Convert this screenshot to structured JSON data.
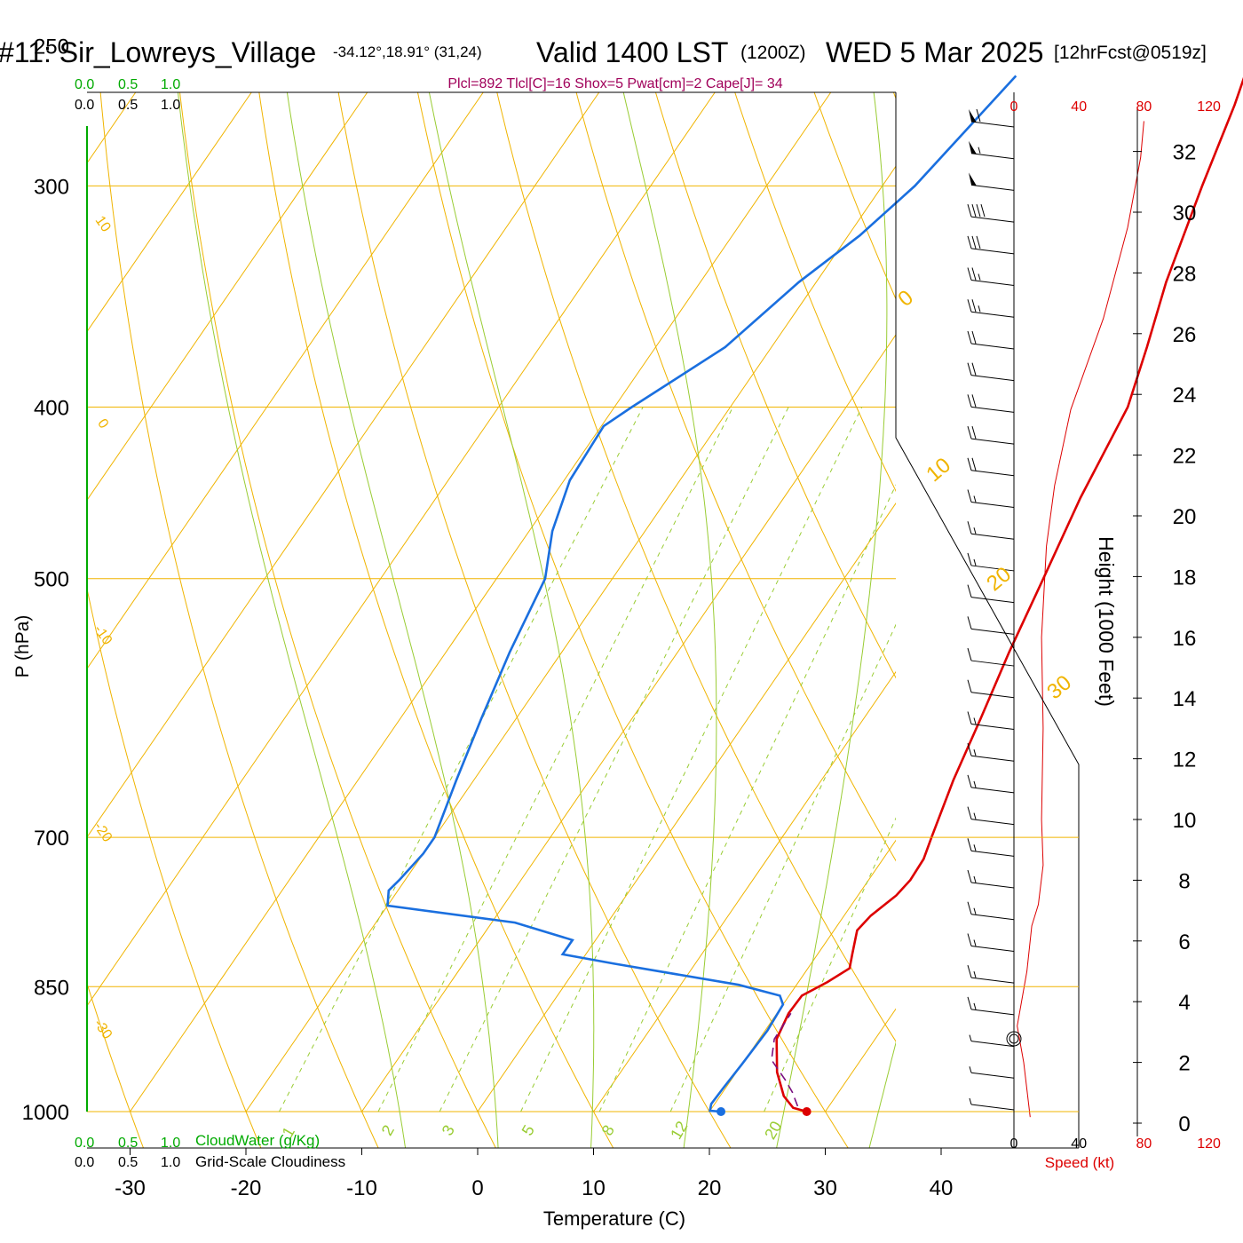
{
  "header": {
    "station": "#11: Sir_Lowreys_Village",
    "coords": "-34.12°,18.91° (31,24)",
    "valid_main": "Valid 1400 LST",
    "valid_z": "(1200Z)",
    "date": "WED 5 Mar 2025",
    "forecast": "[12hrFcst@0519z]",
    "indices": "Plcl=892 Tlcl[C]=16 Shox=5 Pwat[cm]=2 Cape[J]= 34"
  },
  "colors": {
    "isotherm": "#f0b400",
    "mixing": "#99cc33",
    "temperature": "#dd0000",
    "dewpoint": "#1a6fdf",
    "parcel": "#7a1080",
    "cloud_green": "#00aa00",
    "indices": "#a0005a",
    "speed": "#dd0000"
  },
  "chart_data": {
    "type": "line",
    "title": "",
    "xlabel": "Temperature (C)",
    "ylabel": "P (hPa)",
    "xlim": [
      -34,
      36
    ],
    "x_ticks": [
      -30,
      -20,
      -10,
      0,
      10,
      20,
      30,
      40
    ],
    "pressure_ticks": [
      250,
      300,
      400,
      500,
      700,
      850,
      1000
    ],
    "skew_isotherm_labels": [
      "10",
      "0",
      "-10",
      "-20",
      "-30"
    ],
    "dry_adiabat_labels": [
      "0",
      "10",
      "20",
      "30"
    ],
    "mixing_ratio_labels": [
      "1",
      "2",
      "3",
      "5",
      "8",
      "12",
      "20"
    ],
    "series": [
      {
        "name": "",
        "kind": "temperature",
        "points": [
          [
            28.4,
            1000
          ],
          [
            27,
            995
          ],
          [
            25.5,
            980
          ],
          [
            23.5,
            950
          ],
          [
            21.5,
            910
          ],
          [
            21,
            880
          ],
          [
            21.1,
            860
          ],
          [
            22.5,
            845
          ],
          [
            23.6,
            830
          ],
          [
            23,
            815
          ],
          [
            22,
            790
          ],
          [
            22.3,
            775
          ],
          [
            23.3,
            755
          ],
          [
            23.6,
            740
          ],
          [
            23.5,
            720
          ],
          [
            22.9,
            700
          ],
          [
            21.4,
            650
          ],
          [
            20.1,
            600
          ],
          [
            18.6,
            550
          ],
          [
            17.2,
            500
          ],
          [
            15.6,
            450
          ],
          [
            14.3,
            400
          ],
          [
            12.4,
            370
          ],
          [
            10.2,
            340
          ],
          [
            7.6,
            300
          ],
          [
            5.6,
            270
          ],
          [
            3.2,
            243
          ]
        ]
      },
      {
        "name": "",
        "kind": "dewpoint",
        "points": [
          [
            21,
            1000
          ],
          [
            20,
            999
          ],
          [
            19.7,
            990
          ],
          [
            19.8,
            970
          ],
          [
            20,
            940
          ],
          [
            20.2,
            900
          ],
          [
            20,
            870
          ],
          [
            19.2,
            860
          ],
          [
            15,
            848
          ],
          [
            3,
            825
          ],
          [
            -2,
            815
          ],
          [
            -2,
            800
          ],
          [
            -8,
            782
          ],
          [
            -20,
            765
          ],
          [
            -20.8,
            750
          ],
          [
            -20.5,
            740
          ],
          [
            -20,
            715
          ],
          [
            -20,
            700
          ],
          [
            -21.5,
            650
          ],
          [
            -23,
            600
          ],
          [
            -24.5,
            550
          ],
          [
            -25.8,
            500
          ],
          [
            -28,
            470
          ],
          [
            -29.5,
            440
          ],
          [
            -29.8,
            410
          ],
          [
            -28.5,
            400
          ],
          [
            -24,
            370
          ],
          [
            -21.5,
            340
          ],
          [
            -19,
            320
          ],
          [
            -17.2,
            300
          ],
          [
            -15,
            260
          ]
        ]
      },
      {
        "name": "",
        "kind": "parcel",
        "points": [
          [
            27.3,
            993
          ],
          [
            26,
            975
          ],
          [
            24.7,
            960
          ],
          [
            22.3,
            935
          ],
          [
            21.3,
            910
          ],
          [
            21.2,
            880
          ]
        ]
      }
    ],
    "wind_barbs_kt": [
      5,
      5,
      5,
      15,
      15,
      15,
      15,
      15,
      15,
      15,
      15,
      15,
      15,
      10,
      10,
      10,
      10,
      15,
      15,
      15,
      20,
      20,
      20,
      20,
      20,
      25,
      25,
      30,
      40,
      50,
      55,
      60
    ],
    "speed_axis": {
      "label": "Speed (kt)",
      "ticks": [
        0,
        40,
        80,
        120
      ]
    },
    "speed_profile": {
      "name": "",
      "points": [
        [
          10,
          0.2
        ],
        [
          6,
          2
        ],
        [
          2,
          3.2
        ],
        [
          8,
          5
        ],
        [
          11,
          6.5
        ],
        [
          15,
          7.2
        ],
        [
          18,
          8.5
        ],
        [
          17,
          10
        ],
        [
          18,
          13
        ],
        [
          17,
          16
        ],
        [
          20,
          19
        ],
        [
          25,
          21
        ],
        [
          35,
          23.5
        ],
        [
          55,
          26.5
        ],
        [
          70,
          29.5
        ],
        [
          78,
          31.8
        ],
        [
          80,
          33
        ]
      ]
    },
    "height_axis": {
      "label": "Height (1000 Feet)",
      "ticks": [
        0,
        2,
        4,
        6,
        8,
        10,
        12,
        14,
        16,
        18,
        20,
        22,
        24,
        26,
        28,
        30,
        32
      ]
    },
    "cloud_axes": {
      "top_green_ticks": [
        "0.0",
        "0.5",
        "1.0"
      ],
      "top_black_ticks": [
        "0.0",
        "0.5",
        "1.0"
      ],
      "bottom_green_ticks": [
        "0.0",
        "0.5",
        "1.0"
      ],
      "bottom_green_label": "CloudWater (g/Kg)",
      "bottom_black_ticks": [
        "0.0",
        "0.5",
        "1.0"
      ],
      "bottom_black_label": "Grid-Scale Cloudiness"
    },
    "surface_temperature": 28.4,
    "surface_dewpoint": 21
  }
}
